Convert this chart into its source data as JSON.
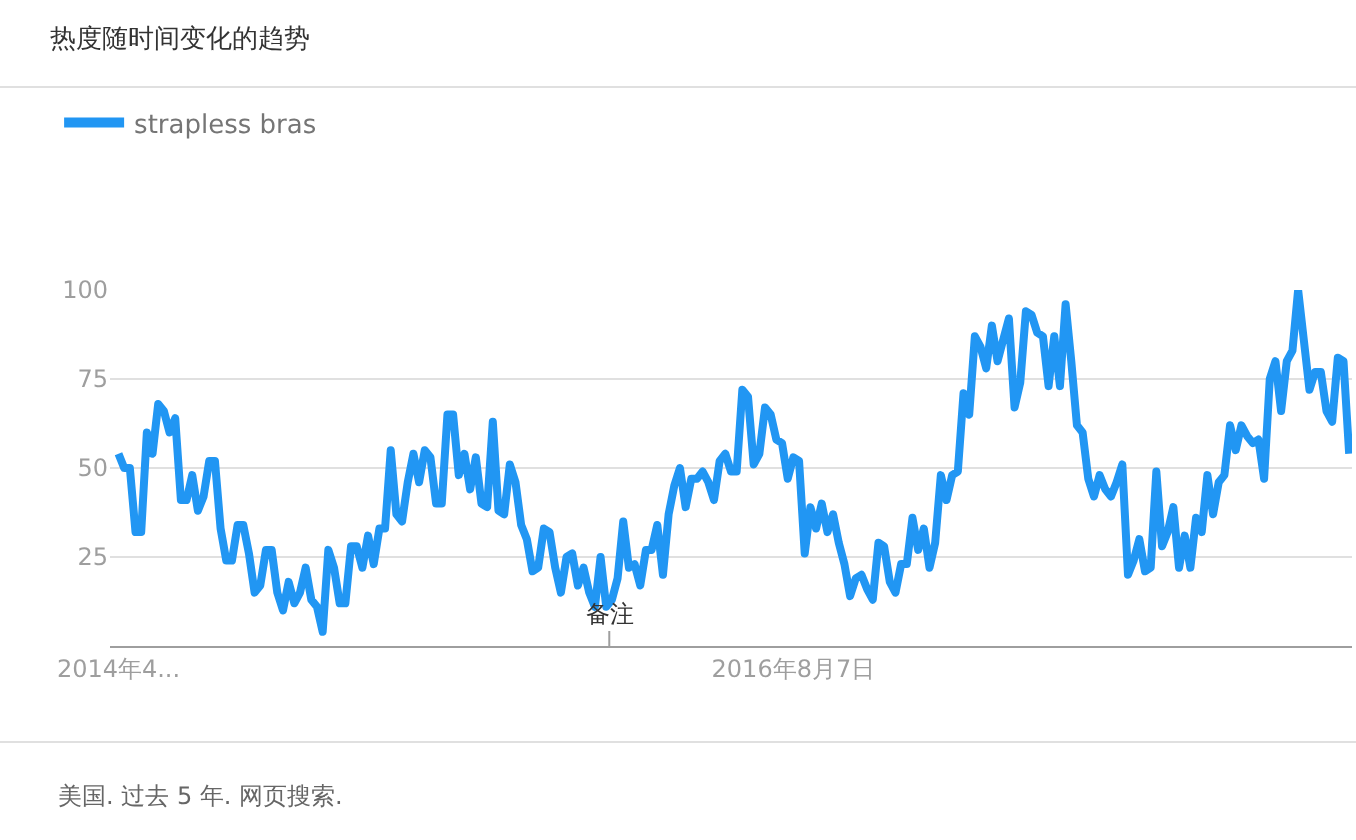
{
  "chart_data": {
    "type": "line",
    "title": "热度随时间变化的趋势",
    "annotations": [
      "美国. 过去 5 年. 网页搜索.",
      "备注"
    ],
    "categories": [
      "2014年4...",
      null,
      null,
      null,
      null,
      null,
      null,
      null,
      null,
      null,
      null,
      null,
      null,
      null,
      null,
      null,
      null,
      null,
      null,
      null,
      null,
      null,
      null,
      null,
      null,
      null,
      null,
      null,
      null,
      null,
      null,
      null,
      null,
      null,
      null,
      null,
      null,
      null,
      null,
      null,
      null,
      null,
      null,
      null,
      null,
      null,
      null,
      null,
      null,
      null,
      null,
      null,
      null,
      null,
      null,
      null,
      null,
      null,
      null,
      null,
      null,
      null,
      null,
      null,
      null,
      null,
      null,
      null,
      null,
      null,
      null,
      null,
      null,
      null,
      null,
      null,
      null,
      null,
      null,
      null,
      null,
      null,
      null,
      null,
      null,
      null,
      null,
      null,
      null,
      null,
      null,
      null,
      null,
      null,
      null,
      null,
      null,
      null,
      null,
      null,
      null,
      null,
      null,
      null,
      null,
      null,
      null,
      null,
      null,
      null,
      null,
      null,
      null,
      null,
      null,
      null,
      null,
      null,
      null,
      "2016年8月7日",
      null,
      null,
      null,
      null,
      null,
      null,
      null,
      null,
      null,
      null,
      null,
      null,
      null,
      null,
      null,
      null,
      null,
      null,
      null,
      null,
      null,
      null,
      null,
      null,
      null,
      null,
      null,
      null,
      null,
      null,
      null,
      null,
      null,
      null,
      null,
      null,
      null,
      null,
      null,
      null,
      null,
      null,
      null,
      null,
      null,
      null,
      null,
      null,
      null,
      null,
      null,
      null,
      null,
      null,
      null,
      null,
      null,
      null,
      null,
      null,
      null,
      null,
      null,
      null,
      null,
      null,
      null,
      null,
      null,
      null,
      null,
      null,
      null,
      null,
      null,
      null,
      null,
      null,
      null,
      null,
      null,
      null,
      null,
      null,
      null,
      null,
      null,
      null,
      null,
      null,
      null,
      null,
      null,
      null,
      null,
      null,
      null,
      null
    ],
    "series": [
      {
        "name": "strapless bras",
        "color": "#2196f3",
        "values": [
          54,
          50,
          50,
          32,
          32,
          60,
          54,
          68,
          66,
          60,
          64,
          41,
          41,
          48,
          38,
          42,
          52,
          52,
          33,
          24,
          24,
          34,
          34,
          26,
          15,
          17,
          27,
          27,
          15,
          10,
          18,
          12,
          15,
          22,
          13,
          11,
          4,
          27,
          22,
          12,
          12,
          28,
          28,
          22,
          31,
          23,
          33,
          33,
          55,
          37,
          35,
          46,
          54,
          46,
          55,
          53,
          40,
          40,
          65,
          65,
          48,
          54,
          44,
          53,
          40,
          39,
          63,
          38,
          37,
          51,
          46,
          34,
          30,
          21,
          22,
          33,
          32,
          22,
          15,
          25,
          26,
          17,
          22,
          15,
          11,
          25,
          11,
          13,
          19,
          35,
          22,
          23,
          17,
          27,
          27,
          34,
          20,
          37,
          45,
          50,
          39,
          47,
          47,
          49,
          46,
          41,
          52,
          54,
          49,
          49,
          72,
          70,
          51,
          54,
          67,
          65,
          58,
          57,
          47,
          53,
          52,
          26,
          39,
          33,
          40,
          32,
          37,
          29,
          23,
          14,
          19,
          20,
          16,
          13,
          29,
          28,
          18,
          15,
          23,
          23,
          36,
          27,
          33,
          22,
          29,
          48,
          41,
          48,
          49,
          71,
          65,
          87,
          84,
          78,
          90,
          80,
          86,
          92,
          67,
          74,
          94,
          93,
          88,
          87,
          73,
          87,
          73,
          96,
          80,
          62,
          60,
          47,
          42,
          48,
          44,
          42,
          46,
          51,
          20,
          24,
          30,
          21,
          22,
          49,
          28,
          32,
          39,
          22,
          31,
          22,
          36,
          32,
          48,
          37,
          46,
          48,
          62,
          55,
          62,
          59,
          57,
          58,
          47,
          75,
          80,
          66,
          80,
          83,
          100,
          86,
          72,
          77,
          77,
          66,
          63,
          81,
          80,
          54
        ]
      }
    ],
    "ylim": [
      0,
      100
    ],
    "yticks": [
      25,
      50,
      75,
      100
    ],
    "grid": "y",
    "legend": "top left",
    "marker": "none",
    "line_style": "solid"
  }
}
